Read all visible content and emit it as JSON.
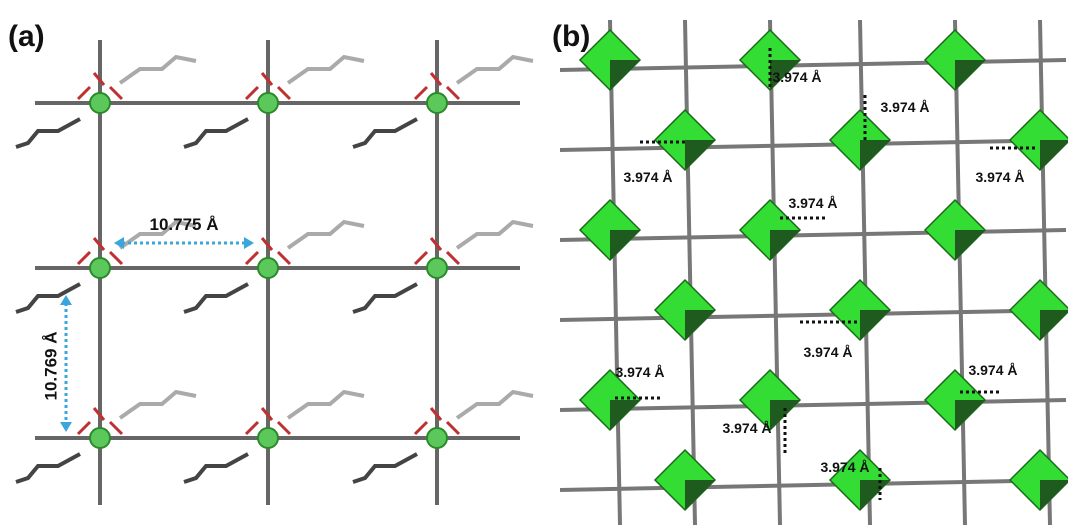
{
  "panels": [
    {
      "label": "(a)",
      "distances": [
        "10.775 Å",
        "10.769 Å"
      ]
    },
    {
      "label": "(b)",
      "contacts": [
        "3.974 Å",
        "3.974 Å",
        "3.974 Å",
        "3.974 Å",
        "3.974 Å",
        "3.974 Å",
        "3.974 Å",
        "3.974 Å",
        "3.974 Å",
        "3.974 Å"
      ]
    }
  ]
}
